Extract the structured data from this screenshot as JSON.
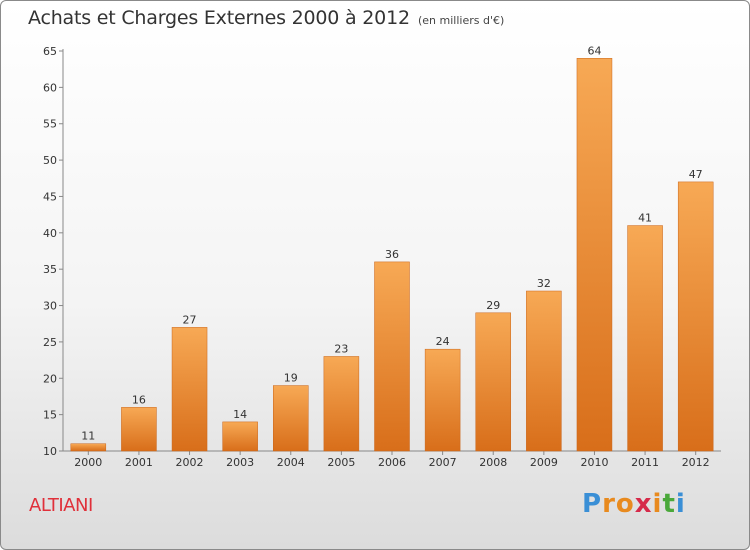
{
  "title": "Achats et Charges Externes 2000 à 2012",
  "subtitle": "(en milliers d'€)",
  "commune": "ALTIANI",
  "logo": {
    "letters": [
      "P",
      "r",
      "o",
      "x",
      "i",
      "t",
      "i"
    ],
    "colors": [
      "#3a8fd6",
      "#e88a1e",
      "#e88a1e",
      "#d62a4a",
      "#e88a1e",
      "#4aa83a",
      "#3a8fd6"
    ]
  },
  "colors": {
    "bar_light": "#f7a955",
    "bar_dark": "#d86e1a",
    "accent": "#e0303a"
  },
  "chart_data": {
    "type": "bar",
    "title": "Achats et Charges Externes 2000 à 2012",
    "subtitle": "(en milliers d'€)",
    "categories": [
      "2000",
      "2001",
      "2002",
      "2003",
      "2004",
      "2005",
      "2006",
      "2007",
      "2008",
      "2009",
      "2010",
      "2011",
      "2012"
    ],
    "values": [
      11,
      16,
      27,
      14,
      19,
      23,
      36,
      24,
      29,
      32,
      64,
      41,
      47
    ],
    "ylim": [
      10,
      65
    ],
    "yticks": [
      10,
      15,
      20,
      25,
      30,
      35,
      40,
      45,
      50,
      55,
      60,
      65
    ],
    "grid": false,
    "xlabel": "",
    "ylabel": ""
  }
}
